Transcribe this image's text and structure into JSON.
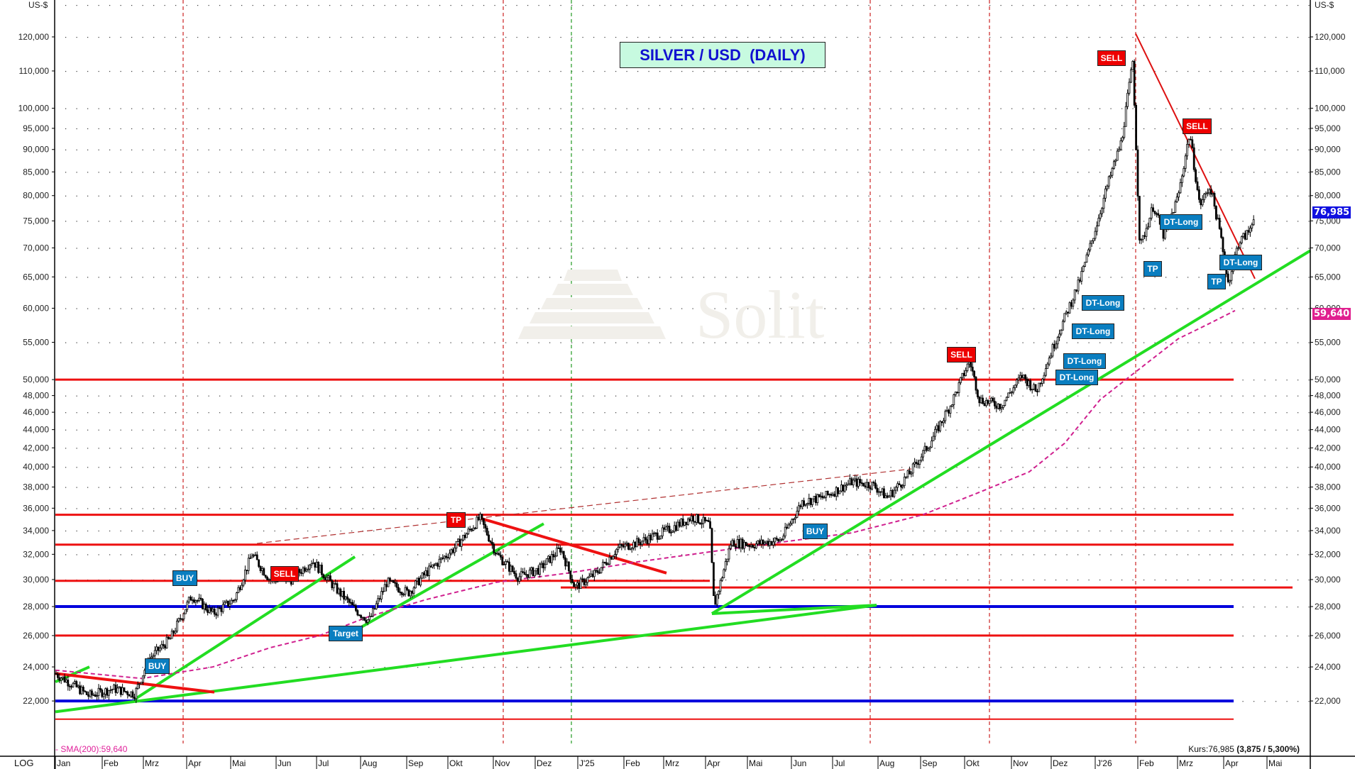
{
  "title": "SILVER / USD  (DAILY)",
  "axis": {
    "unit_left": "US-$",
    "unit_right": "US-$",
    "scale_label": "LOG",
    "y_ticks": [
      "120,000",
      "110,000",
      "100,000",
      "95,000",
      "90,000",
      "85,000",
      "80,000",
      "75,000",
      "70,000",
      "65,000",
      "60,000",
      "55,000",
      "50,000",
      "48,000",
      "46,000",
      "44,000",
      "42,000",
      "40,000",
      "38,000",
      "36,000",
      "34,000",
      "32,000",
      "30,000",
      "28,000",
      "26,000",
      "24,000",
      "22,000"
    ],
    "y_tick_values": [
      120000,
      110000,
      100000,
      95000,
      90000,
      85000,
      80000,
      75000,
      70000,
      65000,
      60000,
      55000,
      50000,
      48000,
      46000,
      44000,
      42000,
      40000,
      38000,
      36000,
      34000,
      32000,
      30000,
      28000,
      26000,
      24000,
      22000
    ],
    "x_months": [
      "Jan",
      "Feb",
      "Mrz",
      "Apr",
      "Mai",
      "Jun",
      "Jul",
      "Aug",
      "Sep",
      "Okt",
      "Nov",
      "Dez",
      "J'25",
      "Feb",
      "Mrz",
      "Apr",
      "Mai",
      "Jun",
      "Jul",
      "Aug",
      "Sep",
      "Okt",
      "Nov",
      "Dez",
      "J'26",
      "Feb",
      "Mrz",
      "Apr",
      "Mai"
    ]
  },
  "legend": {
    "sma": "- SMA(200):59,640",
    "kurs_prefix": "Kurs:76,985 ",
    "kurs_change": "(3,875 / 5,300%)"
  },
  "badges": {
    "last_price": "76,985",
    "sma_value": "59,640"
  },
  "watermark": "Solit",
  "colors": {
    "support_red": "#ee1111",
    "support_blue": "#0000dd",
    "trend_green": "#22dd22",
    "sma_magenta": "#d0208f",
    "label_blue": "#0a7ec0",
    "label_red": "#ee0000",
    "title_bg": "#c7fae0",
    "title_text": "#1010d0"
  },
  "signals": [
    {
      "type": "buy",
      "label": "BUY"
    },
    {
      "type": "buy",
      "label": "BUY"
    },
    {
      "type": "sell",
      "label": "SELL"
    },
    {
      "type": "target",
      "label": "Target"
    },
    {
      "type": "tp-red",
      "label": "TP"
    },
    {
      "type": "buy",
      "label": "BUY"
    },
    {
      "type": "sell",
      "label": "SELL"
    },
    {
      "type": "dt",
      "label": "DT-Long"
    },
    {
      "type": "dt",
      "label": "DT-Long"
    },
    {
      "type": "dt",
      "label": "DT-Long"
    },
    {
      "type": "dt",
      "label": "DT-Long"
    },
    {
      "type": "sell",
      "label": "SELL"
    },
    {
      "type": "sell",
      "label": "SELL"
    },
    {
      "type": "dt",
      "label": "DT-Long"
    },
    {
      "type": "tp",
      "label": "TP"
    },
    {
      "type": "dt",
      "label": "DT-Long"
    },
    {
      "type": "tp",
      "label": "TP"
    }
  ],
  "chart_data": {
    "type": "line",
    "title": "SILVER / USD  (DAILY)",
    "xlabel": "",
    "ylabel": "US-$",
    "y_scale": "log",
    "ylim": [
      21000,
      125000
    ],
    "grid": true,
    "legend_position": "bottom-left",
    "x": [
      "2024-01",
      "2024-02",
      "2024-03",
      "2024-04",
      "2024-05",
      "2024-06",
      "2024-07",
      "2024-08",
      "2024-09",
      "2024-10",
      "2024-11",
      "2024-12",
      "2025-01",
      "2025-02",
      "2025-03",
      "2025-04",
      "2025-05",
      "2025-06",
      "2025-07",
      "2025-08",
      "2025-09",
      "2025-10",
      "2025-11",
      "2025-12",
      "2026-01",
      "2026-02",
      "2026-03",
      "2026-04"
    ],
    "series": [
      {
        "name": "Silver close (approx.)",
        "values": [
          23.5,
          22.6,
          24.5,
          27.5,
          30.5,
          29.5,
          30.8,
          28.0,
          30.5,
          33.5,
          30.5,
          29.5,
          30.5,
          32.5,
          33.5,
          30.0,
          32.5,
          35.5,
          37.5,
          38.5,
          44.0,
          52.0,
          49.0,
          60.0,
          85.0,
          80.0,
          88.0,
          76.985
        ]
      },
      {
        "name": "SMA(200)",
        "values": [
          23.8,
          23.5,
          23.4,
          23.6,
          24.2,
          25.0,
          25.8,
          26.5,
          27.2,
          27.9,
          28.5,
          29.0,
          29.5,
          30.0,
          30.5,
          31.0,
          31.5,
          32.0,
          33.0,
          34.2,
          36.0,
          38.5,
          41.0,
          45.0,
          50.0,
          54.5,
          57.5,
          59.64
        ]
      }
    ],
    "horizontal_levels": [
      {
        "value": 50000,
        "color": "red"
      },
      {
        "value": 35400,
        "color": "red"
      },
      {
        "value": 32800,
        "color": "red"
      },
      {
        "value": 29900,
        "color": "red"
      },
      {
        "value": 29400,
        "color": "red"
      },
      {
        "value": 28000,
        "color": "blue"
      },
      {
        "value": 26000,
        "color": "red"
      },
      {
        "value": 22000,
        "color": "blue"
      },
      {
        "value": 21000,
        "color": "red"
      }
    ],
    "annotations": [
      "BUY",
      "BUY",
      "SELL",
      "Target",
      "TP",
      "BUY",
      "SELL",
      "DT-Long",
      "DT-Long",
      "DT-Long",
      "DT-Long",
      "SELL",
      "SELL",
      "DT-Long",
      "TP",
      "DT-Long",
      "TP"
    ],
    "last_price": 76.985,
    "change": "3,875 / 5,300%",
    "sma200": 59.64
  }
}
